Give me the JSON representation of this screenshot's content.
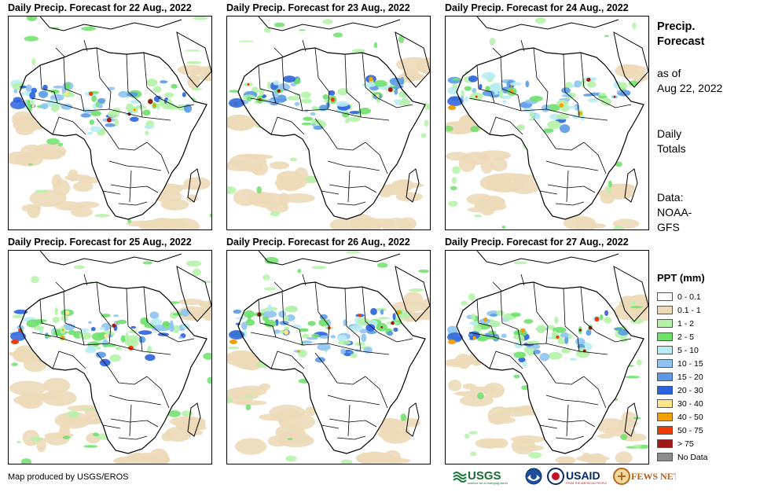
{
  "panels": [
    {
      "title": "Daily Precip. Forecast for 22 Aug., 2022"
    },
    {
      "title": "Daily Precip. Forecast for 23 Aug., 2022"
    },
    {
      "title": "Daily Precip. Forecast for 24 Aug., 2022"
    },
    {
      "title": "Daily Precip. Forecast for 25 Aug., 2022"
    },
    {
      "title": "Daily Precip. Forecast for 26 Aug., 2022"
    },
    {
      "title": "Daily Precip. Forecast for 27 Aug., 2022"
    }
  ],
  "sidebar": {
    "title_line1": "Precip.",
    "title_line2": "Forecast",
    "asof_line1": "as of",
    "asof_line2": "Aug 22, 2022",
    "totals_line1": "Daily",
    "totals_line2": "Totals",
    "data_line1": "Data:",
    "data_line2": "NOAA-",
    "data_line3": "GFS"
  },
  "legend": {
    "title": "PPT (mm)",
    "items": [
      {
        "label": "0 - 0.1",
        "color": "#ffffff"
      },
      {
        "label": "0.1 - 1",
        "color": "#ecd9b8"
      },
      {
        "label": "1 - 2",
        "color": "#b4f2a8"
      },
      {
        "label": "2 - 5",
        "color": "#6de06a"
      },
      {
        "label": "5 - 10",
        "color": "#b8ecf4"
      },
      {
        "label": "10 - 15",
        "color": "#8fc4f2"
      },
      {
        "label": "15 - 20",
        "color": "#5a9ae6"
      },
      {
        "label": "20 - 30",
        "color": "#2a62de"
      },
      {
        "label": "30 - 40",
        "color": "#fde58a"
      },
      {
        "label": "40 - 50",
        "color": "#f2a000"
      },
      {
        "label": "50 - 75",
        "color": "#ef3a00"
      },
      {
        "label": "> 75",
        "color": "#a01818"
      },
      {
        "label": "No Data",
        "color": "#8c8c8c"
      }
    ]
  },
  "credit": "Map produced by USGS/EROS",
  "logos": {
    "usgs": "USGS",
    "usgs_tagline": "science for a changing world",
    "usaid": "USAID",
    "usaid_tagline": "FROM THE AMERICAN PEOPLE",
    "fewsnet": "FEWS NET"
  }
}
